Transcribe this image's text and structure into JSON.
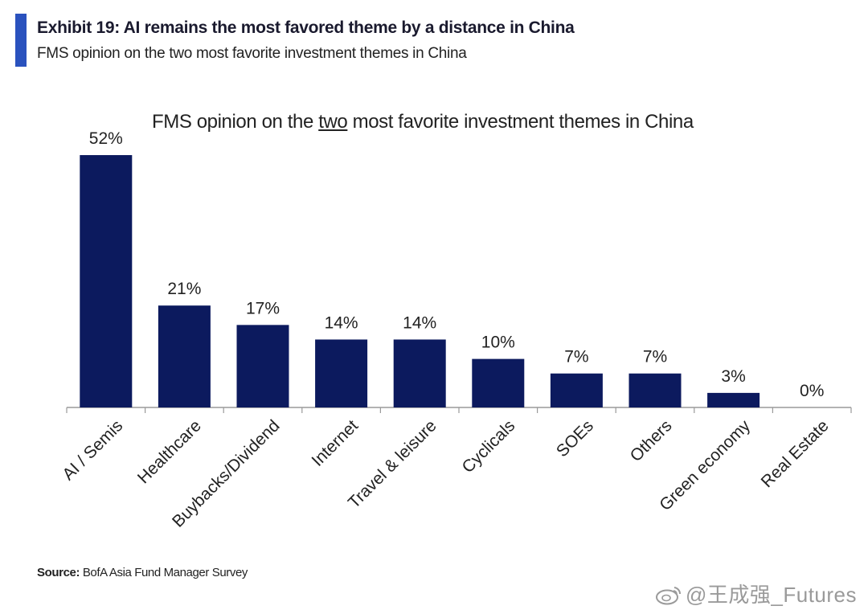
{
  "header": {
    "exhibit_title": "Exhibit 19: AI remains the most favored theme by a distance in China",
    "exhibit_subtitle": "FMS opinion on the two most favorite investment themes in China",
    "accent_color": "#2a52be"
  },
  "chart_title": {
    "before": "FMS opinion on the ",
    "underlined": "two",
    "after": " most favorite investment themes in China"
  },
  "chart_data": {
    "type": "bar",
    "title": "FMS opinion on the two most favorite investment themes in China",
    "categories": [
      "AI / Semis",
      "Healthcare",
      "Buybacks/Dividend",
      "Internet",
      "Travel & leisure",
      "Cyclicals",
      "SOEs",
      "Others",
      "Green economy",
      "Real Estate"
    ],
    "values": [
      52,
      21,
      17,
      14,
      14,
      10,
      7,
      7,
      3,
      0
    ],
    "value_labels": [
      "52%",
      "21%",
      "17%",
      "14%",
      "14%",
      "10%",
      "7%",
      "7%",
      "3%",
      "0%"
    ],
    "unit": "%",
    "ylim": [
      0,
      52
    ],
    "bar_color": "#0c1a5e",
    "grid": false,
    "legend": "none"
  },
  "source": {
    "label": "Source:",
    "text": " BofA Asia Fund Manager Survey"
  },
  "watermark": {
    "text": "@王成强_Futures"
  }
}
